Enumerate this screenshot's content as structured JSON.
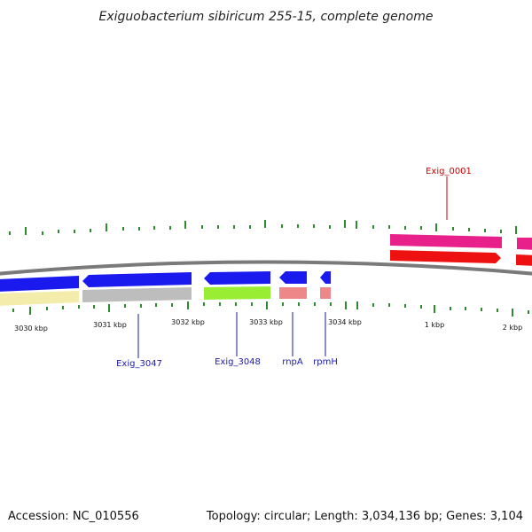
{
  "title": "Exiguobacterium sibiricum 255-15, complete genome",
  "footer": {
    "accession": "Accession: NC_010556",
    "summary": "Topology: circular; Length: 3,034,136 bp; Genes: 3,104"
  },
  "colors": {
    "backbone": "#7a7a7a",
    "tick": "#2e8b2e",
    "label_forward": "#cc0000",
    "label_reverse": "#1a1aaa",
    "gene_blue": "#1a1aee",
    "gene_pink": "#e8208a",
    "gene_red": "#ee1111",
    "gene_yellow": "#f4ecaa",
    "gene_gray": "#bdbdbd",
    "gene_green": "#99ee33",
    "gene_salmon": "#ee8888"
  },
  "position_labels": [
    "3030 kbp",
    "3031 kbp",
    "3032 kbp",
    "3033 kbp",
    "3034 kbp",
    "1 kbp",
    "2 kbp"
  ],
  "gene_labels": [
    "Exig_0001",
    "Exig_3047",
    "Exig_3048",
    "rnpA",
    "rpmH"
  ]
}
